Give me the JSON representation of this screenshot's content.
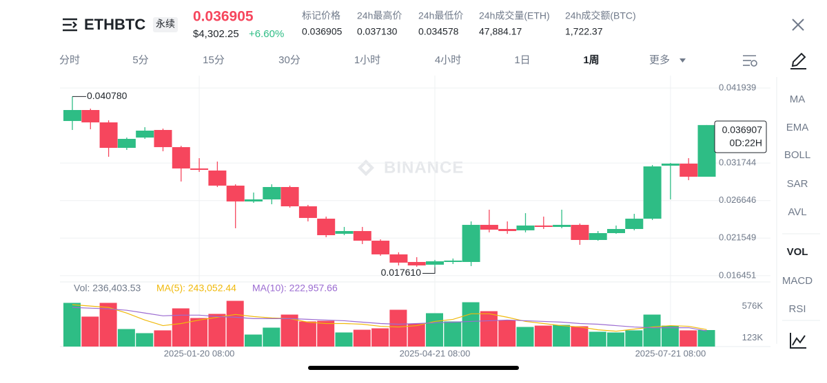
{
  "header": {
    "symbol": "ETHBTC",
    "badge": "永续",
    "price": "0.036905",
    "usd_price": "$4,302.25",
    "change": "+6.60%",
    "stats": [
      {
        "label": "标记价格",
        "value": "0.036905"
      },
      {
        "label": "24h最高价",
        "value": "0.037130"
      },
      {
        "label": "24h最低价",
        "value": "0.034578"
      },
      {
        "label": "24h成交量(ETH)",
        "value": "47,884.17"
      },
      {
        "label": "24h成交额(BTC)",
        "value": "1,722.37"
      }
    ]
  },
  "tabs": [
    "分时",
    "5分",
    "15分",
    "30分",
    "1小时",
    "4小时",
    "1日",
    "1周",
    "更多"
  ],
  "active_tab": "1周",
  "indicators": [
    "MA",
    "EMA",
    "BOLL",
    "SAR",
    "AVL",
    "VOL",
    "MACD",
    "RSI"
  ],
  "active_indicator": "VOL",
  "watermark": "BINANCE",
  "chart_data": {
    "type": "candlestick",
    "categories": [
      null,
      null,
      null,
      null,
      null,
      null,
      null,
      "2025-01-20 08:00",
      null,
      null,
      null,
      null,
      null,
      null,
      null,
      null,
      null,
      null,
      null,
      null,
      "2025-04-21 08:00",
      null,
      null,
      null,
      null,
      null,
      null,
      null,
      null,
      null,
      null,
      null,
      null,
      "2025-07-21 08:00",
      null,
      null
    ],
    "open": [
      0.03746,
      0.03895,
      0.03727,
      0.03381,
      0.03521,
      0.03624,
      0.03391,
      0.03101,
      0.03073,
      0.02868,
      0.02653,
      0.02681,
      0.02849,
      0.02587,
      0.02419,
      0.02214,
      0.02251,
      0.0212,
      0.01934,
      0.01831,
      0.01794,
      0.01831,
      0.01831,
      0.02335,
      0.02279,
      0.02261,
      0.02326,
      0.02307,
      0.02335,
      0.0213,
      0.02223,
      0.02279,
      0.02419,
      0.03139,
      0.03167,
      0.02989
    ],
    "high": [
      0.04078,
      0.03914,
      0.03755,
      0.03521,
      0.03662,
      0.03643,
      0.03409,
      0.03241,
      0.03195,
      0.02886,
      0.02774,
      0.02886,
      0.02868,
      0.02606,
      0.02447,
      0.02307,
      0.02307,
      0.02139,
      0.01962,
      0.01896,
      0.01859,
      0.01878,
      0.02382,
      0.02541,
      0.02382,
      0.02494,
      0.02447,
      0.02541,
      0.02354,
      0.02251,
      0.02326,
      0.02485,
      0.03148,
      0.03176,
      0.03241,
      0.036907
    ],
    "low": [
      0.03624,
      0.03634,
      0.0326,
      0.03353,
      0.03503,
      0.03335,
      0.02924,
      0.03054,
      0.02849,
      0.02289,
      0.02634,
      0.02615,
      0.02569,
      0.02382,
      0.02167,
      0.02195,
      0.02074,
      0.01915,
      0.01784,
      0.01766,
      0.01761,
      0.01803,
      0.01775,
      0.02233,
      0.02214,
      0.02233,
      0.02279,
      0.02289,
      0.02064,
      0.0212,
      0.02214,
      0.02261,
      0.02401,
      0.02681,
      0.02942,
      0.02989
    ],
    "close": [
      0.03895,
      0.03727,
      0.03381,
      0.03503,
      0.03615,
      0.03391,
      0.03101,
      0.03082,
      0.02868,
      0.02653,
      0.02681,
      0.02849,
      0.02587,
      0.02429,
      0.02195,
      0.02251,
      0.0212,
      0.01934,
      0.01822,
      0.01784,
      0.0184,
      0.0185,
      0.02335,
      0.0227,
      0.02251,
      0.02326,
      0.02307,
      0.02335,
      0.0213,
      0.02223,
      0.02279,
      0.02419,
      0.03129,
      0.03167,
      0.02989,
      0.036907
    ],
    "up_color": "#2ebd85",
    "down_color": "#f6465d",
    "ylim": [
      0.0156,
      0.04362
    ],
    "yticks": [
      0.041939,
      0.031744,
      0.026646,
      0.021549,
      0.016451
    ],
    "grid": true,
    "high_label": "0.040780",
    "low_label": "0.017610",
    "last_price_label": "0.036907",
    "countdown": "0D:22H",
    "volume": [
      626000,
      429000,
      626000,
      251000,
      192000,
      232000,
      547000,
      409000,
      468000,
      655000,
      172000,
      271000,
      458000,
      360000,
      369000,
      202000,
      241000,
      261000,
      527000,
      330000,
      478000,
      360000,
      635000,
      507000,
      379000,
      281000,
      300000,
      310000,
      291000,
      212000,
      202000,
      232000,
      458000,
      300000,
      232000,
      236403.53
    ],
    "ma5": [
      600000,
      580000,
      560000,
      480000,
      380000,
      300000,
      330000,
      380000,
      420000,
      460000,
      430000,
      410000,
      400000,
      350000,
      330000,
      330000,
      320000,
      290000,
      280000,
      300000,
      360000,
      390000,
      470000,
      470000,
      420000,
      360000,
      330000,
      300000,
      280000,
      240000,
      220000,
      250000,
      280000,
      300000,
      290000,
      243052.44
    ],
    "ma10": [
      560000,
      550000,
      540000,
      520000,
      480000,
      440000,
      450000,
      450000,
      430000,
      420000,
      400000,
      400000,
      400000,
      390000,
      380000,
      370000,
      350000,
      330000,
      320000,
      330000,
      340000,
      350000,
      360000,
      370000,
      380000,
      370000,
      360000,
      350000,
      330000,
      320000,
      300000,
      280000,
      270000,
      270000,
      270000,
      222957.66
    ],
    "ma5_color": "#f0b90b",
    "ma10_color": "#9b6bd1",
    "vol_ylim": [
      0,
      660000
    ],
    "vol_yticks": [
      {
        "value": 576000,
        "label": "576K"
      },
      {
        "value": 123000,
        "label": "123K"
      }
    ],
    "volume_legend": [
      "Vol: 236,403.53",
      "MA(5): 243,052.44",
      "MA(10): 222,957.66"
    ]
  }
}
